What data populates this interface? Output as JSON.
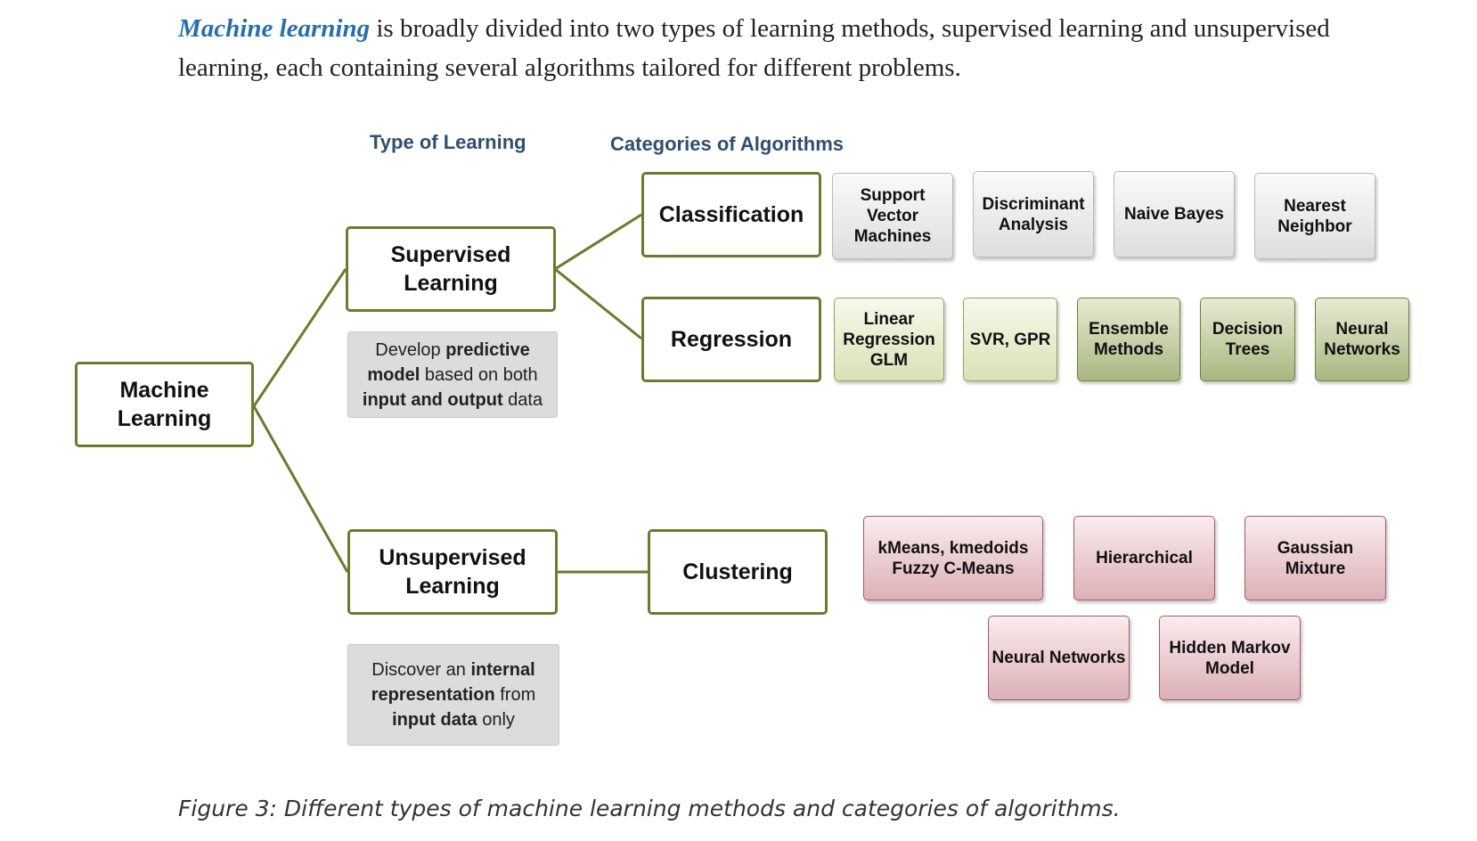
{
  "intro": {
    "keyword": "Machine learning",
    "text": " is broadly divided into two types of learning methods, supervised learning and unsupervised learning, each containing several algorithms tailored for different problems."
  },
  "headers": {
    "type_of_learning": "Type of Learning",
    "categories": "Categories of Algorithms"
  },
  "nodes": {
    "root": "Machine Learning",
    "supervised": "Supervised Learning",
    "unsupervised": "Unsupervised Learning",
    "classification": "Classification",
    "regression": "Regression",
    "clustering": "Clustering"
  },
  "descriptions": {
    "supervised": [
      {
        "t": "Develop ",
        "b": false
      },
      {
        "t": "predictive model",
        "b": true
      },
      {
        "t": " based on both ",
        "b": false
      },
      {
        "t": "input and output",
        "b": true
      },
      {
        "t": " data",
        "b": false
      }
    ],
    "unsupervised": [
      {
        "t": "Discover an ",
        "b": false
      },
      {
        "t": "internal representation",
        "b": true
      },
      {
        "t": " from ",
        "b": false
      },
      {
        "t": "input data",
        "b": true
      },
      {
        "t": " only",
        "b": false
      }
    ]
  },
  "algorithms": {
    "classification": [
      "Support Vector Machines",
      "Discriminant Analysis",
      "Naive Bayes",
      "Nearest Neighbor"
    ],
    "regression": [
      "Linear Regression GLM",
      "SVR, GPR",
      "Ensemble Methods",
      "Decision Trees",
      "Neural Networks"
    ],
    "clustering": [
      "kMeans, kmedoids Fuzzy C-Means",
      "Hierarchical",
      "Gaussian Mixture",
      "Neural Networks",
      "Hidden Markov Model"
    ]
  },
  "caption": "Figure 3: Different types of machine learning methods and categories of algorithms.",
  "colors": {
    "node_border": "#6b7a2c",
    "keyword": "#2a6fa8",
    "header": "#2e4f6e",
    "classification_box": "#dedede",
    "regression_box_light": "#d8e2b6",
    "regression_box_dark": "#a8b880",
    "clustering_box": "#dcb0b6"
  }
}
